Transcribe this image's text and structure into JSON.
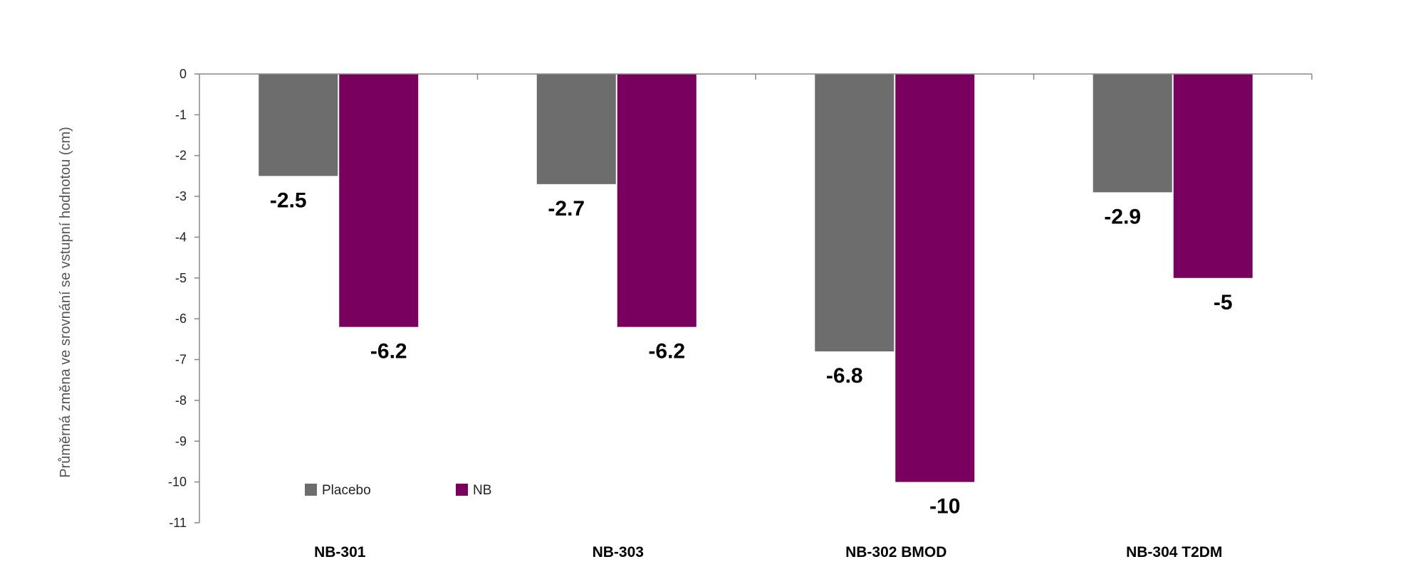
{
  "chart_data": {
    "type": "bar",
    "ylabel": "Průměrná změna ve srovnání se vstupní hodnotou (cm)",
    "xlabel": "",
    "ylim": [
      -11,
      0
    ],
    "yticks": [
      0,
      -1,
      -2,
      -3,
      -4,
      -5,
      -6,
      -7,
      -8,
      -9,
      -10,
      -11
    ],
    "categories": [
      "NB-301",
      "NB-303",
      "NB-302 BMOD",
      "NB-304 T2DM"
    ],
    "series": [
      {
        "name": "Placebo",
        "color": "#6d6d6d",
        "values": [
          -2.5,
          -2.7,
          -6.8,
          -2.9
        ],
        "labels": [
          "-2.5",
          "-2.7",
          "-6.8",
          "-2.9"
        ]
      },
      {
        "name": "NB",
        "color": "#7a0060",
        "values": [
          -6.2,
          -6.2,
          -10,
          -5
        ],
        "labels": [
          "-6.2",
          "-6.2",
          "-10",
          "-5"
        ]
      }
    ],
    "legend": "bottom-left",
    "grid": false
  }
}
